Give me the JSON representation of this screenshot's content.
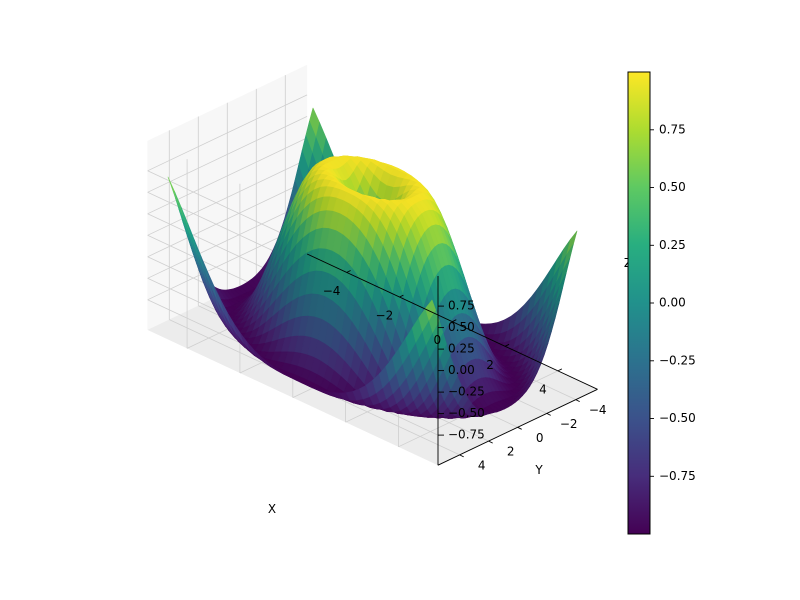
{
  "chart_data": {
    "type": "surface",
    "function": "sin(sqrt(x^2 + y^2))",
    "title": "",
    "xlabel": "X",
    "ylabel": "Y",
    "zlabel": "Z",
    "xlim": [
      -5,
      5
    ],
    "ylim": [
      -5,
      5
    ],
    "zlim": [
      -1,
      1
    ],
    "grid": true,
    "colormap": "viridis",
    "x_ticks": [
      "−4",
      "−2",
      "0",
      "2",
      "4"
    ],
    "y_ticks": [
      "−4",
      "−2",
      "0",
      "2",
      "4"
    ],
    "z_ticks": [
      "−0.75",
      "−0.50",
      "−0.25",
      "0.00",
      "0.25",
      "0.50",
      "0.75"
    ],
    "colorbar": {
      "range": [
        -1,
        1
      ],
      "ticks": [
        "−0.75",
        "−0.50",
        "−0.25",
        "0.00",
        "0.25",
        "0.50",
        "0.75"
      ]
    }
  }
}
